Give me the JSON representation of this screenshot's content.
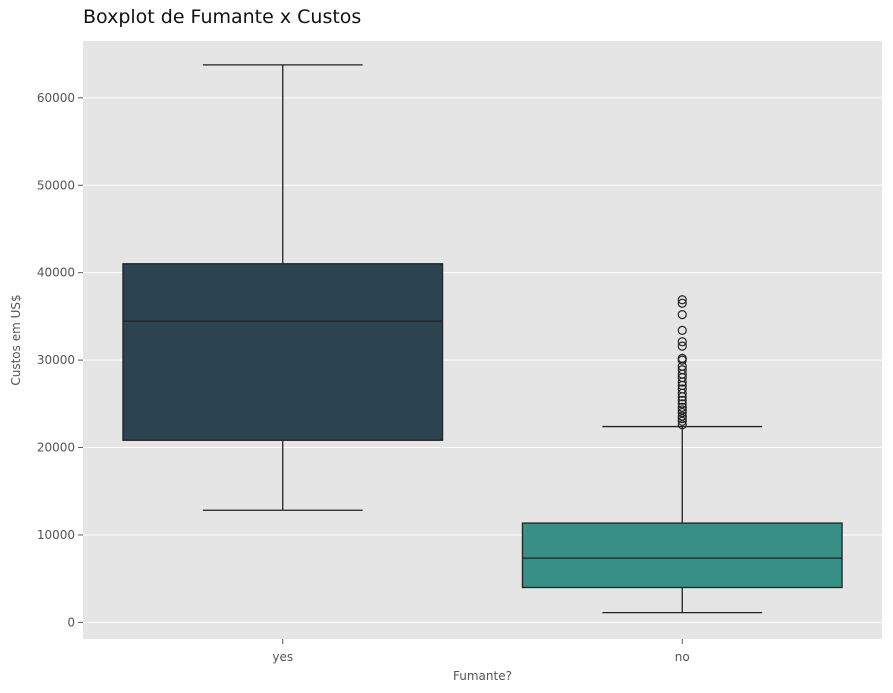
{
  "chart_data": {
    "type": "boxplot",
    "title": "Boxplot de Fumante x Custos",
    "xlabel": "Fumante?",
    "ylabel": "Custos em US$",
    "ylim": [
      -1900,
      66500
    ],
    "yticks": [
      0,
      10000,
      20000,
      30000,
      40000,
      50000,
      60000
    ],
    "grid": true,
    "background": "#e5e5e5",
    "grid_color": "#ffffff",
    "categories": [
      "yes",
      "no"
    ],
    "boxes": [
      {
        "category": "yes",
        "color": "#2c444f",
        "whisker_low": 12830,
        "q1": 20830,
        "median": 34460,
        "q3": 41020,
        "whisker_high": 63770,
        "outliers": []
      },
      {
        "category": "no",
        "color": "#379085",
        "whisker_low": 1120,
        "q1": 3990,
        "median": 7350,
        "q3": 11360,
        "whisker_high": 22400,
        "outliers": [
          22600,
          23000,
          23300,
          23600,
          24000,
          24300,
          24600,
          25000,
          25400,
          25800,
          26200,
          26700,
          27100,
          27500,
          28000,
          28400,
          28900,
          29300,
          30000,
          30200,
          31600,
          32100,
          33400,
          35200,
          36500,
          36900
        ]
      }
    ]
  }
}
